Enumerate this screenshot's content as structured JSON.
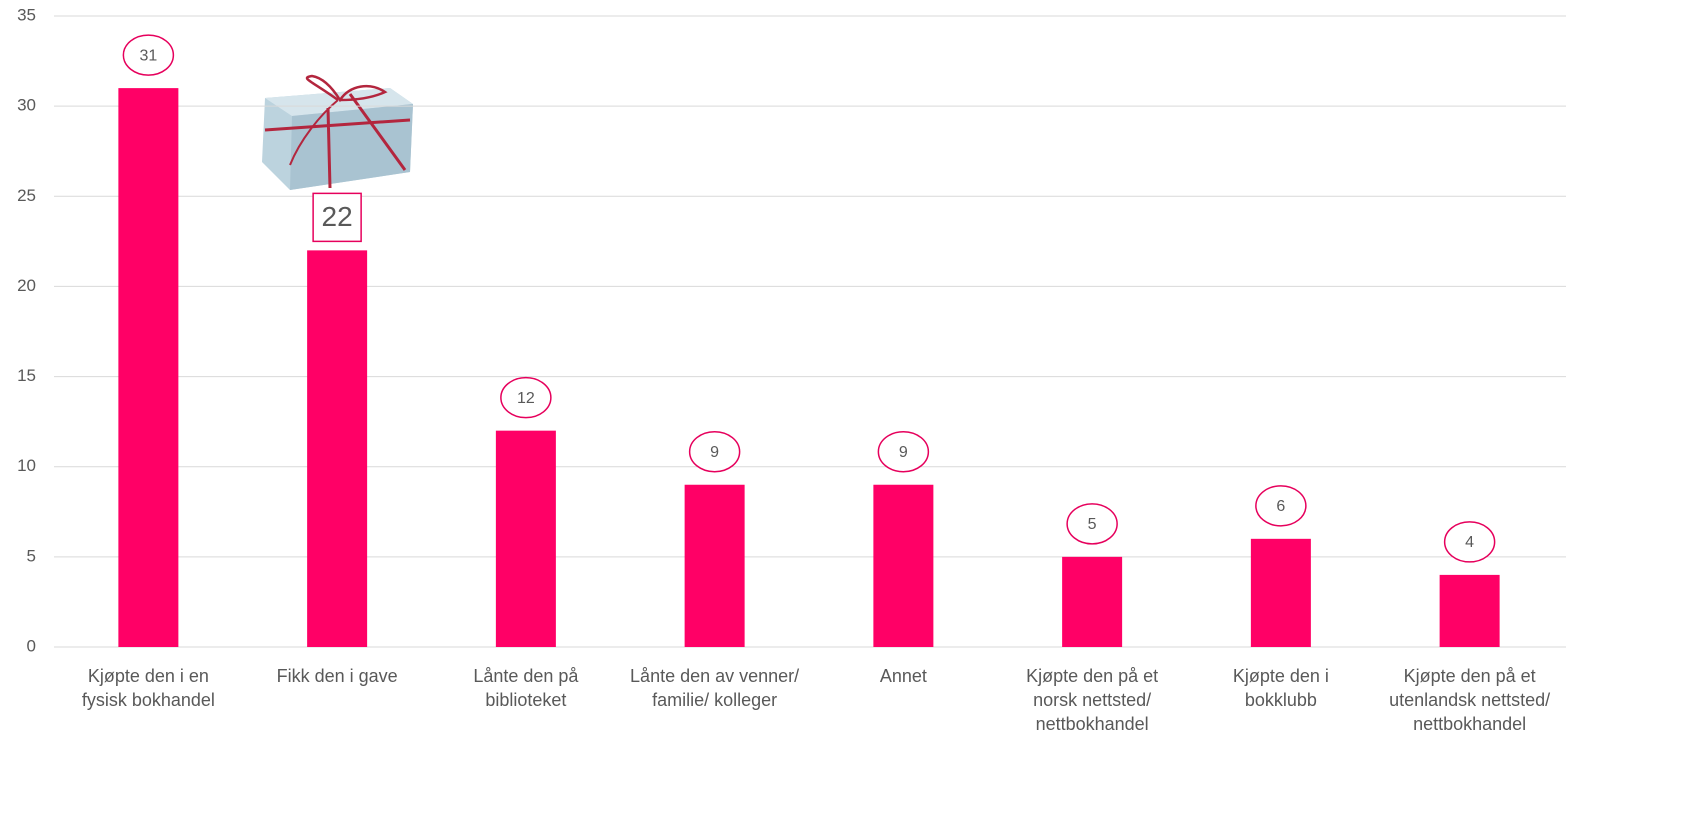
{
  "chart_data": {
    "type": "bar",
    "categories": [
      "Kjøpte den i en fysisk bokhandel",
      "Fikk den i gave",
      "Lånte den på biblioteket",
      "Lånte den av venner/ familie/ kolleger",
      "Annet",
      "Kjøpte den på et norsk nettsted/ nettbokhandel",
      "Kjøpte den i bokklubb",
      "Kjøpte den på et utenlandsk nettsted/ nettbokhandel"
    ],
    "values": [
      31,
      22,
      12,
      9,
      9,
      5,
      6,
      4
    ],
    "color": "#ff0066",
    "ylim": [
      0,
      35
    ],
    "yticks": [
      0,
      5,
      10,
      15,
      20,
      25,
      30,
      35
    ],
    "grid": true
  }
}
